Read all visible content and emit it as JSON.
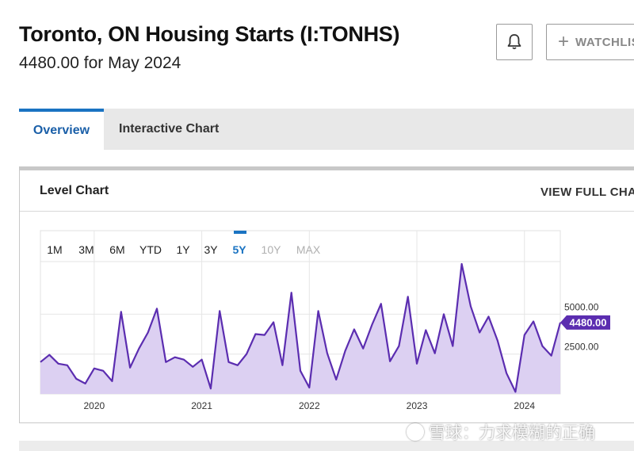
{
  "header": {
    "title": "Toronto, ON Housing Starts (I:TONHS)",
    "subtitle": "4480.00 for May 2024",
    "watchlist_label": "WATCHLIST"
  },
  "tabs": [
    {
      "label": "Overview",
      "active": true
    },
    {
      "label": "Interactive Chart",
      "active": false
    }
  ],
  "card": {
    "title": "Level Chart",
    "view_full": "VIEW FULL CHART"
  },
  "range_buttons": [
    {
      "label": "1M",
      "state": "normal"
    },
    {
      "label": "3M",
      "state": "normal"
    },
    {
      "label": "6M",
      "state": "normal"
    },
    {
      "label": "YTD",
      "state": "normal"
    },
    {
      "label": "1Y",
      "state": "normal"
    },
    {
      "label": "3Y",
      "state": "normal"
    },
    {
      "label": "5Y",
      "state": "active"
    },
    {
      "label": "10Y",
      "state": "disabled"
    },
    {
      "label": "MAX",
      "state": "disabled"
    }
  ],
  "colors": {
    "line": "#5b2db0",
    "fill": "#dcd0f2",
    "badge": "#5b2db0",
    "active_tab": "#1a73c2"
  },
  "watermark": "雪球：力求模糊的正确",
  "chart_data": {
    "type": "area",
    "x": [
      "2019-07",
      "2019-08",
      "2019-09",
      "2019-10",
      "2019-11",
      "2019-12",
      "2020-01",
      "2020-02",
      "2020-03",
      "2020-04",
      "2020-05",
      "2020-06",
      "2020-07",
      "2020-08",
      "2020-09",
      "2020-10",
      "2020-11",
      "2020-12",
      "2021-01",
      "2021-02",
      "2021-03",
      "2021-04",
      "2021-05",
      "2021-06",
      "2021-07",
      "2021-08",
      "2021-09",
      "2021-10",
      "2021-11",
      "2021-12",
      "2022-01",
      "2022-02",
      "2022-03",
      "2022-04",
      "2022-05",
      "2022-06",
      "2022-07",
      "2022-08",
      "2022-09",
      "2022-10",
      "2022-11",
      "2022-12",
      "2023-01",
      "2023-02",
      "2023-03",
      "2023-04",
      "2023-05",
      "2023-06",
      "2023-07",
      "2023-08",
      "2023-09",
      "2023-10",
      "2023-11",
      "2023-12",
      "2024-01",
      "2024-02",
      "2024-03",
      "2024-04",
      "2024-05"
    ],
    "series": [
      {
        "values": [
          2000,
          2450,
          1900,
          1800,
          950,
          650,
          1600,
          1450,
          800,
          5150,
          1650,
          2850,
          3850,
          5350,
          2000,
          2300,
          2150,
          1700,
          2150,
          340,
          5200,
          2000,
          1800,
          2500,
          3750,
          3700,
          4500,
          1800,
          6350,
          1450,
          400,
          5200,
          2550,
          900,
          2700,
          4050,
          2850,
          4350,
          5650,
          2050,
          3000,
          6100,
          1900,
          4000,
          2550,
          5000,
          3000,
          8150,
          5500,
          3850,
          4850,
          3350,
          1300,
          130,
          3700,
          4550,
          3000,
          2400,
          4480
        ]
      }
    ],
    "last_value_label": "4480.00",
    "y_ticks": [
      2500,
      5000
    ],
    "y_tick_labels": [
      "2500.00",
      "5000.00"
    ],
    "x_tick_labels": [
      "2020",
      "2021",
      "2022",
      "2023",
      "2024"
    ],
    "ylim": [
      0,
      8300
    ],
    "grid": true,
    "legend": "none"
  }
}
